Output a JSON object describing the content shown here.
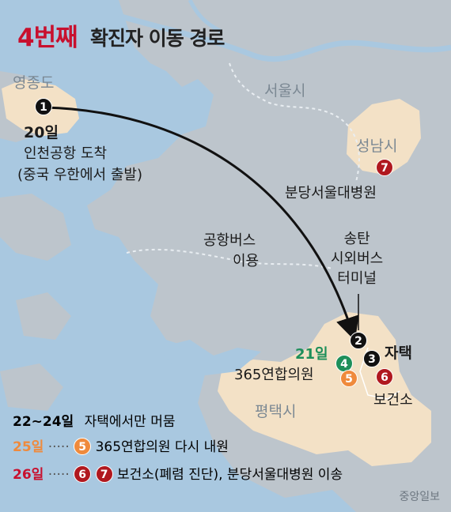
{
  "title": {
    "highlight": "4번째",
    "rest": "확진자 이동 경로"
  },
  "places": {
    "yeongjongdo": "영종도",
    "seoul": "서울시",
    "seongnam": "성남시",
    "pyeongtaek": "평택시",
    "bundang_hospital": "분당서울대병원",
    "clinic": "365연합의원",
    "health_center": "보건소",
    "home": "자택",
    "terminal": "송탄\n시외버스\n터미널"
  },
  "route": {
    "step1_date": "20일",
    "step1_text1": "인천공항 도착",
    "step1_text2": "(중국 우한에서 출발)",
    "bus_label1": "공항버스",
    "bus_label2": "이용",
    "day21": "21일"
  },
  "markers": {
    "m1": "1",
    "m2": "2",
    "m3": "3",
    "m4": "4",
    "m5": "5",
    "m6": "6",
    "m7": "7"
  },
  "legend": {
    "row1_date": "22~24일",
    "row1_text": "자택에서만 머뭄",
    "row2_date": "25일",
    "row2_dots": "·····",
    "row2_text": "365연합의원 다시 내원",
    "row3_date": "26일",
    "row3_dots": "·····",
    "row3_text": "보건소(폐렴 진단), 분당서울대병원 이송"
  },
  "credit": "중앙일보",
  "colors": {
    "red": "#c8102e",
    "black": "#111111",
    "green": "#1e8f5a",
    "orange": "#ef8a3c",
    "water": "#a9c8e0",
    "land": "#bdc5cc",
    "highlight_land": "#f3e1c6"
  }
}
